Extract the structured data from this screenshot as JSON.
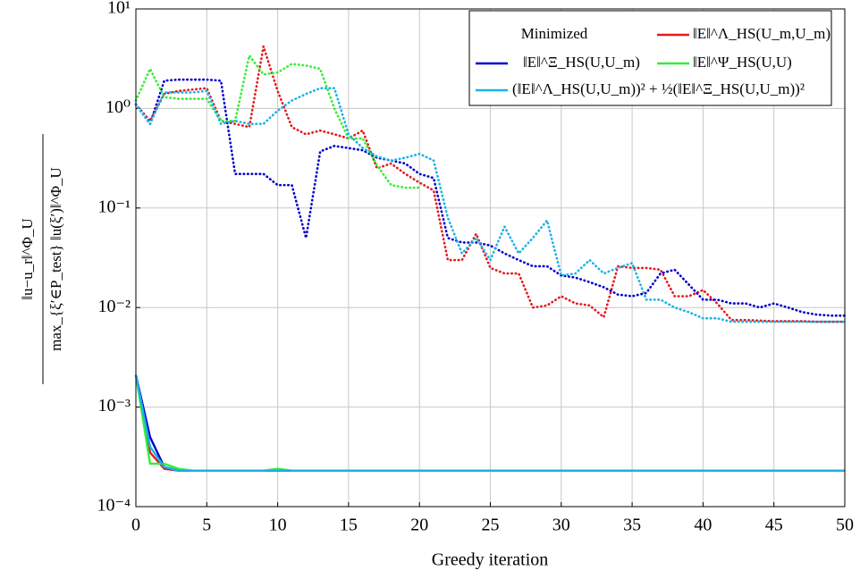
{
  "chart_data": {
    "type": "line",
    "xlabel": "Greedy iteration",
    "ylabel_numerator": "‖u−u_r‖^Φ_U",
    "ylabel_denominator": "max_{ξ′∈P_test} ‖u(ξ′)‖^Φ_U",
    "legend_title": "Minimized",
    "log_y": true,
    "grid": true,
    "legend": "upper right",
    "x": [
      0,
      1,
      2,
      3,
      4,
      5,
      6,
      7,
      8,
      9,
      10,
      11,
      12,
      13,
      14,
      15,
      16,
      17,
      18,
      19,
      20,
      21,
      22,
      23,
      24,
      25,
      26,
      27,
      28,
      29,
      30,
      31,
      32,
      33,
      34,
      35,
      36,
      37,
      38,
      39,
      40,
      41,
      42,
      43,
      44,
      45,
      46,
      47,
      48,
      49,
      50
    ],
    "xlim": [
      0,
      50
    ],
    "xticks": [
      0,
      5,
      10,
      15,
      20,
      25,
      30,
      35,
      40,
      45,
      50
    ],
    "ylim": [
      0.0001,
      10
    ],
    "yticks": [
      {
        "value": 0.0001,
        "label": "10⁻⁴"
      },
      {
        "value": 0.001,
        "label": "10⁻³"
      },
      {
        "value": 0.01,
        "label": "10⁻²"
      },
      {
        "value": 0.1,
        "label": "10⁻¹"
      },
      {
        "value": 1,
        "label": "10⁰"
      },
      {
        "value": 10,
        "label": "10¹"
      }
    ],
    "series": [
      {
        "name": "‖E‖^Λ_HS(U_m,U_m)",
        "color": "#e41a1c",
        "values": [
          0.0021,
          0.00035,
          0.00024,
          0.00023,
          0.00023,
          0.00023,
          0.00023,
          0.00023,
          0.00023,
          0.00023,
          0.00023,
          0.00023,
          0.00023,
          0.00023,
          0.00023,
          0.00023,
          0.00023,
          0.00023,
          0.00023,
          0.00023,
          0.00023,
          0.00023,
          0.00023,
          0.00023,
          0.00023,
          0.00023,
          0.00023,
          0.00023,
          0.00023,
          0.00023,
          0.00023,
          0.00023,
          0.00023,
          0.00023,
          0.00023,
          0.00023,
          0.00023,
          0.00023,
          0.00023,
          0.00023,
          0.00023,
          0.00023,
          0.00023,
          0.00023,
          0.00023,
          0.00023,
          0.00023,
          0.00023,
          0.00023,
          0.00023,
          0.00023
        ],
        "dotted_values": [
          1.1,
          0.75,
          1.4,
          1.5,
          1.55,
          1.6,
          0.75,
          0.7,
          0.65,
          4.2,
          1.5,
          0.65,
          0.55,
          0.6,
          0.55,
          0.5,
          0.6,
          0.25,
          0.28,
          0.22,
          0.18,
          0.15,
          0.03,
          0.03,
          0.055,
          0.025,
          0.022,
          0.022,
          0.01,
          0.0105,
          0.013,
          0.011,
          0.0105,
          0.008,
          0.026,
          0.025,
          0.025,
          0.024,
          0.013,
          0.013,
          0.015,
          0.011,
          0.0075,
          0.0075,
          0.0074,
          0.0073,
          0.0073,
          0.0073,
          0.0072,
          0.0072,
          0.0072
        ]
      },
      {
        "name": "‖E‖^Ξ_HS(U,U_m)",
        "color": "#0000cc",
        "values": [
          0.0021,
          0.0005,
          0.00025,
          0.00023,
          0.00023,
          0.00023,
          0.00023,
          0.00023,
          0.00023,
          0.00023,
          0.00023,
          0.00023,
          0.00023,
          0.00023,
          0.00023,
          0.00023,
          0.00023,
          0.00023,
          0.00023,
          0.00023,
          0.00023,
          0.00023,
          0.00023,
          0.00023,
          0.00023,
          0.00023,
          0.00023,
          0.00023,
          0.00023,
          0.00023,
          0.00023,
          0.00023,
          0.00023,
          0.00023,
          0.00023,
          0.00023,
          0.00023,
          0.00023,
          0.00023,
          0.00023,
          0.00023,
          0.00023,
          0.00023,
          0.00023,
          0.00023,
          0.00023,
          0.00023,
          0.00023,
          0.00023,
          0.00023,
          0.00023
        ],
        "dotted_values": [
          1.1,
          0.7,
          1.9,
          1.95,
          1.95,
          1.95,
          1.9,
          0.22,
          0.22,
          0.22,
          0.17,
          0.17,
          0.05,
          0.37,
          0.42,
          0.4,
          0.38,
          0.32,
          0.3,
          0.28,
          0.22,
          0.2,
          0.05,
          0.045,
          0.045,
          0.042,
          0.035,
          0.03,
          0.026,
          0.026,
          0.021,
          0.02,
          0.018,
          0.016,
          0.0135,
          0.013,
          0.014,
          0.022,
          0.024,
          0.017,
          0.012,
          0.012,
          0.011,
          0.011,
          0.01,
          0.011,
          0.01,
          0.009,
          0.0085,
          0.0083,
          0.0083
        ]
      },
      {
        "name": "‖E‖^Ψ_HS(U,U)",
        "color": "#33ee33",
        "values": [
          0.0021,
          0.00027,
          0.00027,
          0.00024,
          0.00023,
          0.00023,
          0.00023,
          0.00023,
          0.00023,
          0.00023,
          0.00024,
          0.00023,
          0.00023,
          0.00023,
          0.00023,
          0.00023,
          0.00023,
          0.00023,
          0.00023,
          0.00023,
          0.00023,
          0.00023,
          0.00023,
          0.00023,
          0.00023,
          0.00023,
          0.00023,
          0.00023,
          0.00023,
          0.00023,
          0.00023,
          0.00023,
          0.00023,
          0.00023,
          0.00023,
          0.00023,
          0.00023,
          0.00023,
          0.00023,
          0.00023,
          0.00023,
          0.00023,
          0.00023,
          0.00023,
          0.00023,
          0.00023,
          0.00023,
          0.00023,
          0.00023,
          0.00023,
          0.00023
        ],
        "dotted_values": [
          1.2,
          2.5,
          1.3,
          1.25,
          1.25,
          1.25,
          0.75,
          0.75,
          3.4,
          2.2,
          2.3,
          2.8,
          2.7,
          2.5,
          1.0,
          0.5,
          0.5,
          0.27,
          0.17,
          0.16,
          0.16,
          null,
          null,
          null,
          null,
          null,
          null,
          null,
          null,
          null,
          null,
          null,
          null,
          null,
          null,
          null,
          null,
          null,
          null,
          null,
          null,
          null,
          null,
          null,
          null,
          null,
          null,
          null,
          null,
          null,
          null
        ]
      },
      {
        "name": "(‖E‖^Λ_HS(U,U_m))² + ½(‖E‖^Ξ_HS(U,U_m))²",
        "color": "#1ab2e6",
        "values": [
          0.0021,
          0.0004,
          0.00025,
          0.00023,
          0.00023,
          0.00023,
          0.00023,
          0.00023,
          0.00023,
          0.00023,
          0.00023,
          0.00023,
          0.00023,
          0.00023,
          0.00023,
          0.00023,
          0.00023,
          0.00023,
          0.00023,
          0.00023,
          0.00023,
          0.00023,
          0.00023,
          0.00023,
          0.00023,
          0.00023,
          0.00023,
          0.00023,
          0.00023,
          0.00023,
          0.00023,
          0.00023,
          0.00023,
          0.00023,
          0.00023,
          0.00023,
          0.00023,
          0.00023,
          0.00023,
          0.00023,
          0.00023,
          0.00023,
          0.00023,
          0.00023,
          0.00023,
          0.00023,
          0.00023,
          0.00023,
          0.00023,
          0.00023,
          0.00023
        ],
        "dotted_values": [
          1.1,
          0.7,
          1.45,
          1.45,
          1.45,
          1.5,
          0.7,
          0.75,
          0.7,
          0.7,
          0.95,
          1.2,
          1.4,
          1.6,
          1.6,
          0.55,
          0.4,
          0.33,
          0.3,
          0.32,
          0.35,
          0.3,
          0.08,
          0.035,
          0.05,
          0.03,
          0.065,
          0.035,
          0.05,
          0.075,
          0.021,
          0.022,
          0.03,
          0.022,
          0.025,
          0.028,
          0.012,
          0.012,
          0.01,
          0.009,
          0.0078,
          0.0078,
          0.0072,
          0.0072,
          0.0072,
          0.0072,
          0.0072,
          0.0072,
          0.0072,
          0.0072,
          0.0072
        ]
      }
    ]
  }
}
